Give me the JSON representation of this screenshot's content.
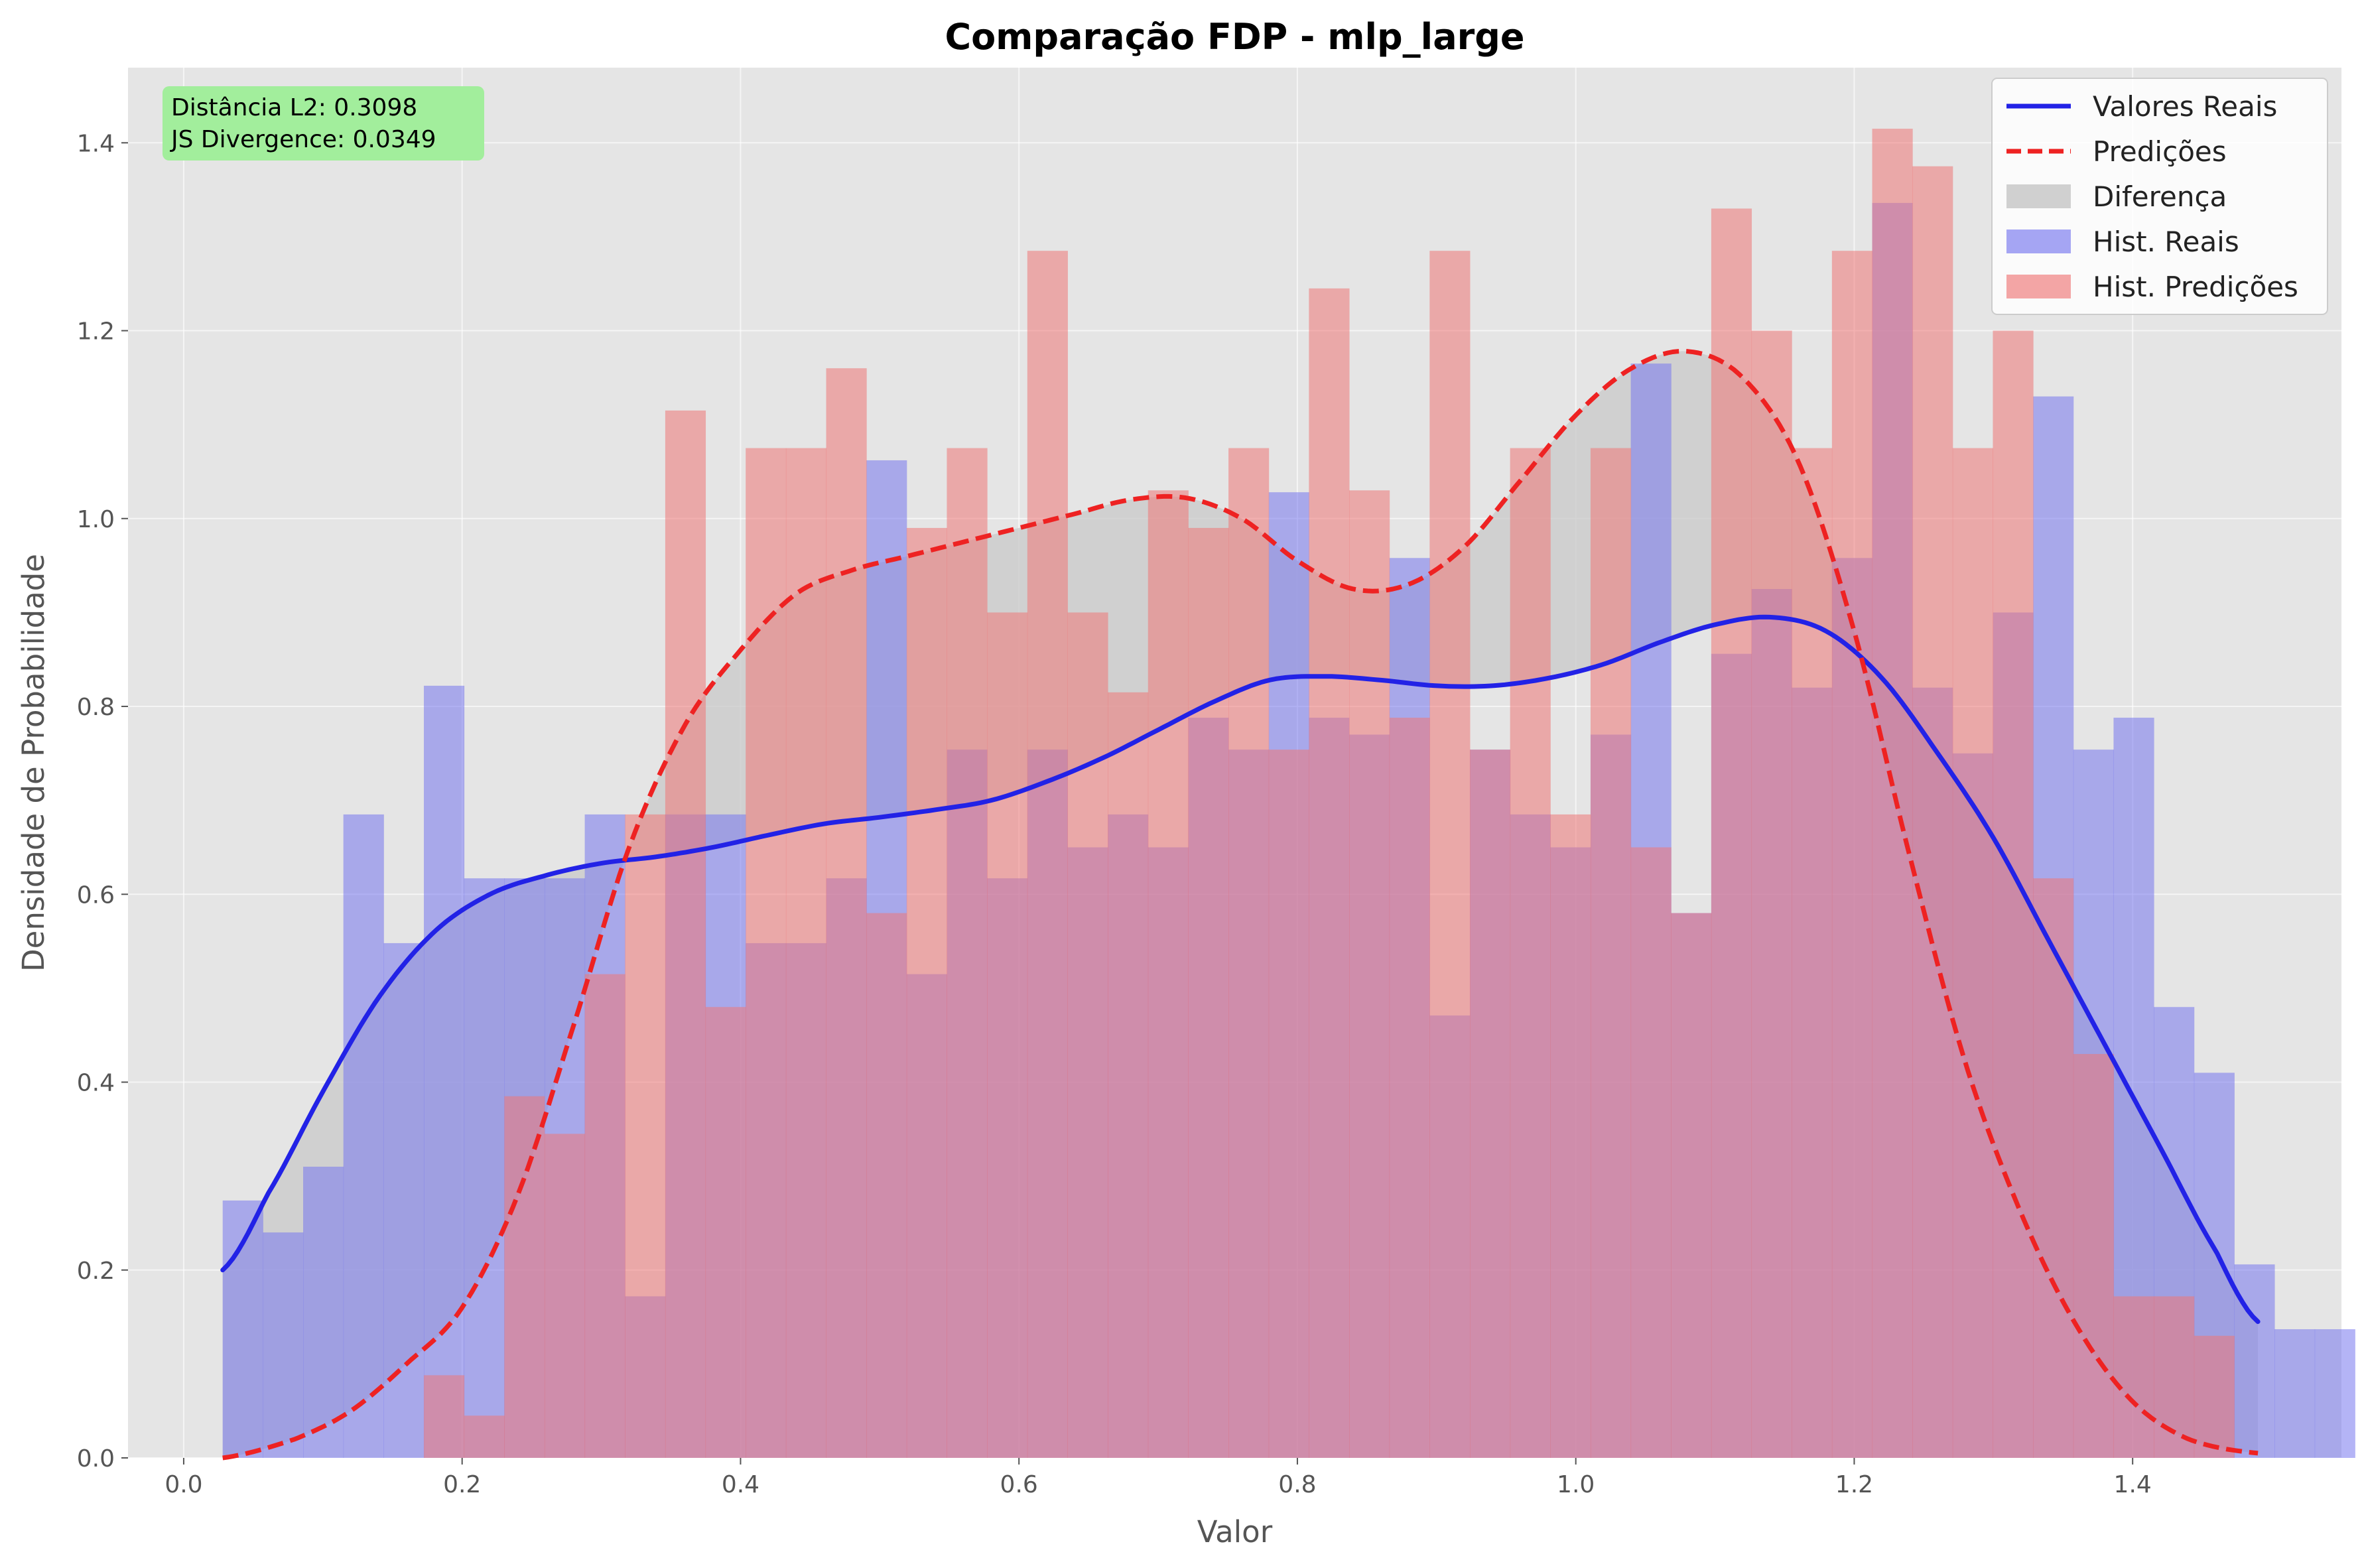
{
  "chart_data": {
    "type": "histogram+kde",
    "title": "Comparação FDP - mlp_large",
    "xlabel": "Valor",
    "ylabel": "Densidade de Probabilidade",
    "xlim": [
      -0.04,
      1.55
    ],
    "ylim": [
      0,
      1.48
    ],
    "xticks": [
      0.0,
      0.2,
      0.4,
      0.6,
      0.8,
      1.0,
      1.2,
      1.4
    ],
    "xtick_labels": [
      "0.0",
      "0.2",
      "0.4",
      "0.6",
      "0.8",
      "1.0",
      "1.2",
      "1.4"
    ],
    "yticks": [
      0.0,
      0.2,
      0.4,
      0.6,
      0.8,
      1.0,
      1.2,
      1.4
    ],
    "ytick_labels": [
      "0.0",
      "0.2",
      "0.4",
      "0.6",
      "0.8",
      "1.0",
      "1.2",
      "1.4"
    ],
    "grid": true,
    "legend_position": "top-right",
    "legend": [
      "Valores Reais",
      "Predições",
      "Diferença",
      "Hist. Reais",
      "Hist. Predições"
    ],
    "stats": [
      "Distância L2: 0.3098",
      "JS Divergence: 0.0349"
    ],
    "colors": {
      "real_line": "#2222e6",
      "pred_line": "#ee2222",
      "diff_fill": "#c8c8c8",
      "hist_real": "#7777ee",
      "hist_pred": "#ee7777",
      "stats_box": "#a2ee9c",
      "plot_bg": "#e5e5e5"
    },
    "bins": {
      "start": 0.028,
      "width": 0.0289,
      "real": [
        0.274,
        0.24,
        0.31,
        0.685,
        0.548,
        0.822,
        0.617,
        0.617,
        0.617,
        0.685,
        0.172,
        0.685,
        0.685,
        0.548,
        0.548,
        0.617,
        1.062,
        0.515,
        0.754,
        0.617,
        0.754,
        0.65,
        0.685,
        0.65,
        0.788,
        0.754,
        1.028,
        0.788,
        0.77,
        0.958,
        0.471,
        0.754,
        0.685,
        0.65,
        0.77,
        1.165,
        0.58,
        0.856,
        0.925,
        0.82,
        0.958,
        1.336,
        0.82,
        0.75,
        0.9,
        1.13,
        0.754,
        0.788,
        0.48,
        0.41,
        0.206,
        0.137,
        0.137
      ],
      "pred": [
        0,
        0,
        0,
        0,
        0,
        0.088,
        0.045,
        0.385,
        0.345,
        0.515,
        0.685,
        1.115,
        0.48,
        1.075,
        1.075,
        1.16,
        0.58,
        0.99,
        1.075,
        0.9,
        1.285,
        0.9,
        0.815,
        1.03,
        0.99,
        1.075,
        0.754,
        1.245,
        1.03,
        0.788,
        1.285,
        0.754,
        1.075,
        0.685,
        1.075,
        0.65,
        0.58,
        1.33,
        1.2,
        1.075,
        1.285,
        1.415,
        1.375,
        1.075,
        1.2,
        0.617,
        0.43,
        0.172,
        0.172,
        0.13,
        0,
        0,
        0
      ]
    },
    "series": [
      {
        "name": "Valores Reais",
        "x": [
          0.028,
          0.06,
          0.1,
          0.14,
          0.18,
          0.22,
          0.26,
          0.3,
          0.34,
          0.38,
          0.42,
          0.46,
          0.5,
          0.54,
          0.58,
          0.62,
          0.66,
          0.7,
          0.74,
          0.78,
          0.82,
          0.86,
          0.9,
          0.94,
          0.98,
          1.02,
          1.06,
          1.1,
          1.14,
          1.18,
          1.22,
          1.26,
          1.3,
          1.34,
          1.38,
          1.42,
          1.46,
          1.49
        ],
        "y": [
          0.2,
          0.28,
          0.39,
          0.49,
          0.56,
          0.6,
          0.62,
          0.633,
          0.64,
          0.65,
          0.663,
          0.675,
          0.682,
          0.69,
          0.7,
          0.72,
          0.745,
          0.775,
          0.805,
          0.828,
          0.832,
          0.828,
          0.822,
          0.822,
          0.83,
          0.845,
          0.868,
          0.887,
          0.895,
          0.88,
          0.83,
          0.75,
          0.66,
          0.55,
          0.44,
          0.33,
          0.22,
          0.145
        ]
      },
      {
        "name": "Predições",
        "x": [
          0.028,
          0.08,
          0.12,
          0.16,
          0.2,
          0.24,
          0.28,
          0.32,
          0.36,
          0.4,
          0.44,
          0.48,
          0.52,
          0.56,
          0.6,
          0.64,
          0.68,
          0.72,
          0.76,
          0.8,
          0.84,
          0.88,
          0.92,
          0.96,
          1.0,
          1.04,
          1.08,
          1.12,
          1.16,
          1.2,
          1.24,
          1.28,
          1.32,
          1.36,
          1.4,
          1.44,
          1.49
        ],
        "y": [
          0.0,
          0.02,
          0.05,
          0.1,
          0.16,
          0.28,
          0.46,
          0.65,
          0.78,
          0.86,
          0.92,
          0.945,
          0.96,
          0.975,
          0.99,
          1.005,
          1.02,
          1.022,
          1.0,
          0.955,
          0.925,
          0.93,
          0.97,
          1.04,
          1.11,
          1.16,
          1.178,
          1.15,
          1.06,
          0.88,
          0.64,
          0.42,
          0.26,
          0.14,
          0.06,
          0.02,
          0.005
        ]
      }
    ]
  }
}
